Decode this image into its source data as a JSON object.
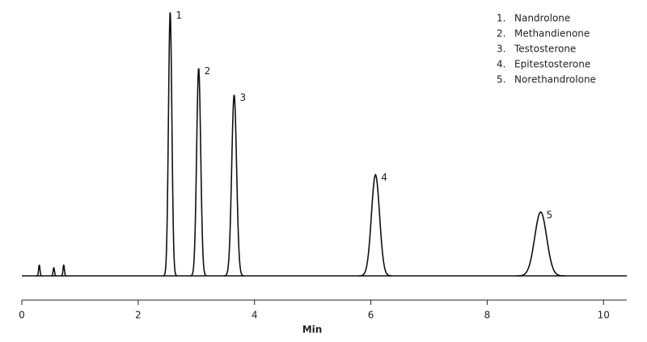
{
  "chart_data": {
    "type": "chromatogram",
    "x_label": "Min",
    "xlim": [
      0,
      10.4
    ],
    "xticks": [
      0,
      2,
      4,
      6,
      8,
      10
    ],
    "ylim": [
      0,
      100
    ],
    "color": "#111111",
    "peaks": {
      "labels": [
        null,
        null,
        null,
        "1",
        "2",
        "3",
        "4",
        "5"
      ],
      "x": [
        0.3,
        0.55,
        0.72,
        2.55,
        3.04,
        3.65,
        6.08,
        8.92
      ],
      "heights": [
        4,
        3,
        4,
        99,
        78,
        68,
        38,
        24
      ]
    },
    "legend": [
      {
        "number": "1.",
        "name": "Nandrolone"
      },
      {
        "number": "2.",
        "name": "Methandienone"
      },
      {
        "number": "3.",
        "name": "Testosterone"
      },
      {
        "number": "4.",
        "name": "Epitestosterone"
      },
      {
        "number": "5.",
        "name": "Norethandrolone"
      }
    ]
  }
}
